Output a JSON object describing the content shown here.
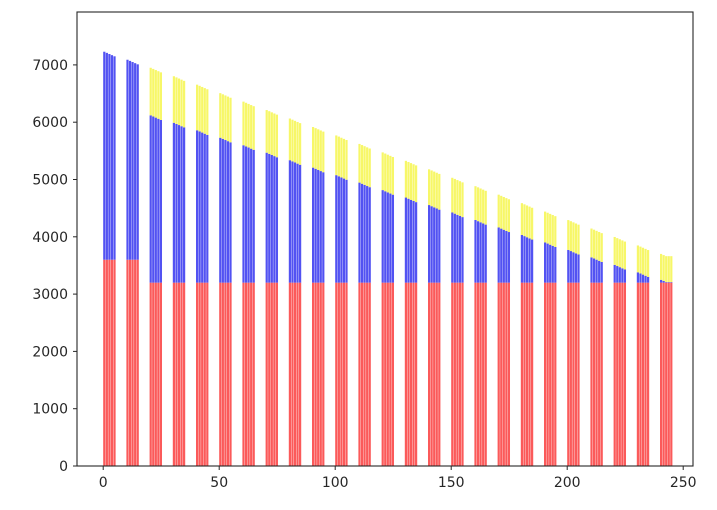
{
  "figure": {
    "title": "",
    "background": "#ffffff",
    "frame_color": "#262626",
    "tick_label_color": "#262626"
  },
  "chart_data": {
    "type": "bar",
    "stacked": true,
    "title": "",
    "xlabel": "",
    "ylabel": "",
    "legend": null,
    "grid": false,
    "xlim": [
      -11.3,
      254.3
    ],
    "ylim": [
      0,
      7925
    ],
    "x_ticks": [
      0,
      50,
      100,
      150,
      200,
      250
    ],
    "y_ticks": [
      0,
      1000,
      2000,
      3000,
      4000,
      5000,
      6000,
      7000
    ],
    "bars_per_group": 5,
    "bar_offset_step_units": 1.1,
    "bar_width_units": 0.95,
    "within_group_height_step": 20,
    "series_order": [
      "red",
      "blue",
      "yellow"
    ],
    "series_colors": {
      "red": "#fb5a5a",
      "blue": "#5252f2",
      "yellow": "#f7f768"
    },
    "groups": [
      {
        "x": 0,
        "red": 3600,
        "blue": 3630,
        "yellow": 0
      },
      {
        "x": 10,
        "red": 3600,
        "blue": 3490,
        "yellow": 0
      },
      {
        "x": 20,
        "red": 3200,
        "blue": 2920,
        "yellow": 830
      },
      {
        "x": 30,
        "red": 3200,
        "blue": 2790,
        "yellow": 812
      },
      {
        "x": 40,
        "red": 3200,
        "blue": 2659,
        "yellow": 796
      },
      {
        "x": 50,
        "red": 3200,
        "blue": 2529,
        "yellow": 778
      },
      {
        "x": 60,
        "red": 3200,
        "blue": 2398,
        "yellow": 761
      },
      {
        "x": 70,
        "red": 3200,
        "blue": 2268,
        "yellow": 744
      },
      {
        "x": 80,
        "red": 3200,
        "blue": 2137,
        "yellow": 727
      },
      {
        "x": 90,
        "red": 3200,
        "blue": 2007,
        "yellow": 709
      },
      {
        "x": 100,
        "red": 3200,
        "blue": 1876,
        "yellow": 693
      },
      {
        "x": 110,
        "red": 3200,
        "blue": 1746,
        "yellow": 675
      },
      {
        "x": 120,
        "red": 3200,
        "blue": 1615,
        "yellow": 658
      },
      {
        "x": 130,
        "red": 3200,
        "blue": 1485,
        "yellow": 641
      },
      {
        "x": 140,
        "red": 3200,
        "blue": 1354,
        "yellow": 624
      },
      {
        "x": 150,
        "red": 3200,
        "blue": 1224,
        "yellow": 606
      },
      {
        "x": 160,
        "red": 3200,
        "blue": 1093,
        "yellow": 590
      },
      {
        "x": 170,
        "red": 3200,
        "blue": 963,
        "yellow": 572
      },
      {
        "x": 180,
        "red": 3200,
        "blue": 832,
        "yellow": 555
      },
      {
        "x": 190,
        "red": 3200,
        "blue": 702,
        "yellow": 538
      },
      {
        "x": 200,
        "red": 3200,
        "blue": 571,
        "yellow": 521
      },
      {
        "x": 210,
        "red": 3200,
        "blue": 441,
        "yellow": 503
      },
      {
        "x": 220,
        "red": 3200,
        "blue": 310,
        "yellow": 487
      },
      {
        "x": 230,
        "red": 3200,
        "blue": 180,
        "yellow": 469
      },
      {
        "x": 240,
        "red": 3200,
        "blue": 49,
        "yellow": 452
      }
    ]
  }
}
